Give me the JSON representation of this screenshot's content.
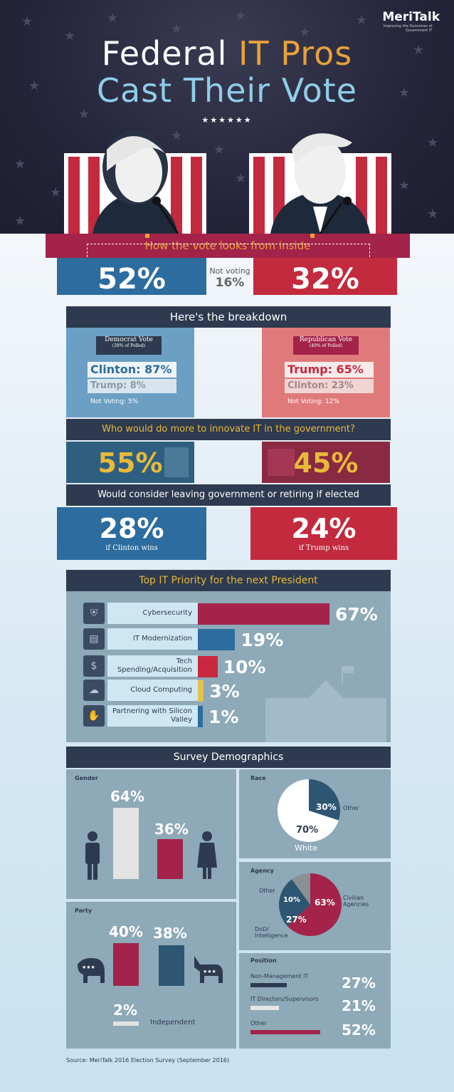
{
  "header": {
    "logo_name": "MeriTalk",
    "logo_tagline": "Improving the Outcomes of Government IT",
    "title_line1_a": "Federal ",
    "title_line1_b": "IT Pros",
    "title_line2": "Cast Their Vote",
    "stars": "★★★★★★"
  },
  "inside": {
    "title": "How the vote looks from inside",
    "clinton_pct": "52%",
    "trump_pct": "32%",
    "not_voting_label": "Not voting",
    "not_voting_pct": "16%"
  },
  "breakdown": {
    "title": "Here's the breakdown",
    "dem": {
      "label": "Democrat Vote",
      "sub": "(38% of Polled)",
      "line1": "Clinton: 87%",
      "line2": "Trump: 8%",
      "line3": "Not Voting: 5%"
    },
    "rep": {
      "label": "Republican Vote",
      "sub": "(40% of Polled)",
      "line1": "Trump: 65%",
      "line2": "Clinton: 23%",
      "line3": "Not Voting: 12%"
    }
  },
  "innovate": {
    "title": "Who would do more to innovate IT in the government?",
    "clinton_pct": "55%",
    "trump_pct": "45%"
  },
  "leaving": {
    "title": "Would consider leaving government or retiring if elected",
    "clinton_pct": "28%",
    "clinton_sub": "if Clinton wins",
    "trump_pct": "24%",
    "trump_sub": "if Trump wins"
  },
  "priority": {
    "title": "Top IT Priority for the next President",
    "items": [
      {
        "label": "Cybersecurity",
        "pct": "67%",
        "value": 67,
        "color": "#a3234a",
        "icon": "shield-icon"
      },
      {
        "label": "IT Modernization",
        "pct": "19%",
        "value": 19,
        "color": "#2d6c9e",
        "icon": "document-icon"
      },
      {
        "label": "Tech Spending/Acquisition",
        "pct": "10%",
        "value": 10,
        "color": "#c9283e",
        "icon": "dollar-icon"
      },
      {
        "label": "Cloud Computing",
        "pct": "3%",
        "value": 3,
        "color": "#e8c24a",
        "icon": "cloud-icon"
      },
      {
        "label": "Partnering with Silicon Valley",
        "pct": "1%",
        "value": 1,
        "color": "#2d6c9e",
        "icon": "handshake-icon"
      }
    ]
  },
  "demographics": {
    "title": "Survey Demographics",
    "gender": {
      "label": "Gender",
      "male_pct": "64%",
      "female_pct": "36%",
      "male": 64,
      "female": 36
    },
    "race": {
      "label": "Race",
      "white_pct": "70%",
      "white_label": "White",
      "other_pct": "30%",
      "other_label": "Other",
      "white": 70,
      "other": 30
    },
    "agency": {
      "label": "Agency",
      "civilian_pct": "63%",
      "civilian_label": "Civilian Agencies",
      "dod_pct": "27%",
      "dod_label": "DoD/ Intelligence",
      "other_pct": "10%",
      "other_label": "Other",
      "civilian": 63,
      "dod": 27,
      "other": 10
    },
    "party": {
      "label": "Party",
      "rep_pct": "40%",
      "dem_pct": "38%",
      "ind_pct": "2%",
      "ind_label": "Independent",
      "rep": 40,
      "dem": 38,
      "ind": 2
    },
    "position": {
      "label": "Position",
      "items": [
        {
          "label": "Non-Management IT",
          "pct": "27%",
          "value": 27,
          "color": "#2d3a4f"
        },
        {
          "label": "IT Directors/Supervisors",
          "pct": "21%",
          "value": 21,
          "color": "#e6e6e6"
        },
        {
          "label": "Other",
          "pct": "52%",
          "value": 52,
          "color": "#a3234a"
        }
      ]
    }
  },
  "source": "Source: MeriTalk 2016 Election Survey (September 2016)",
  "colors": {
    "navy": "#2d3a4f",
    "crimson": "#a3234a",
    "blue": "#2d6c9e",
    "gold": "#e8b93a"
  }
}
